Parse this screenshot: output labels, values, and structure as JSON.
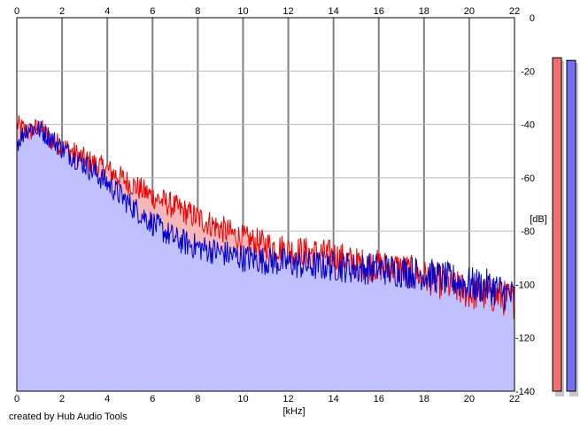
{
  "chart_data": {
    "type": "area",
    "xlabel": "[kHz]",
    "ylabel": "[dB]",
    "xlim": [
      0,
      22
    ],
    "ylim": [
      -140,
      0
    ],
    "x_ticks": [
      "0",
      "2",
      "4",
      "6",
      "8",
      "10",
      "12",
      "14",
      "16",
      "18",
      "20",
      "22"
    ],
    "y_ticks": [
      "0",
      "-20",
      "-40",
      "-60",
      "-80",
      "-100",
      "-120",
      "-140"
    ],
    "grid": true,
    "series": [
      {
        "color": "#ee0000",
        "fill": "#f4b8b8",
        "x": [
          0,
          0.5,
          1,
          1.5,
          2,
          3,
          4,
          5,
          6,
          7,
          8,
          9,
          10,
          11,
          12,
          13,
          14,
          15,
          16,
          17,
          18,
          19,
          20,
          21,
          22
        ],
        "values": [
          -40,
          -43,
          -41,
          -46,
          -48,
          -53,
          -57,
          -62,
          -67,
          -71,
          -75,
          -79,
          -83,
          -85,
          -87,
          -88,
          -89,
          -92,
          -93,
          -94,
          -97,
          -100,
          -103,
          -104,
          -106
        ]
      },
      {
        "color": "#0000cc",
        "fill": "#c0c0ff",
        "x": [
          0,
          0.5,
          1,
          1.5,
          2,
          3,
          4,
          5,
          6,
          7,
          8,
          9,
          10,
          11,
          12,
          13,
          14,
          15,
          16,
          17,
          18,
          19,
          20,
          21,
          22
        ],
        "values": [
          -47,
          -41,
          -42,
          -45,
          -49,
          -55,
          -62,
          -70,
          -77,
          -83,
          -86,
          -88,
          -90,
          -91,
          -92,
          -93,
          -93,
          -94,
          -94,
          -95,
          -96,
          -98,
          -100,
          -101,
          -105
        ]
      }
    ],
    "meters": [
      {
        "color": "#f07070",
        "value_db": -15
      },
      {
        "color": "#7070f0",
        "value_db": -16
      }
    ]
  },
  "footer": {
    "credit": "created by Hub Audio Tools"
  }
}
